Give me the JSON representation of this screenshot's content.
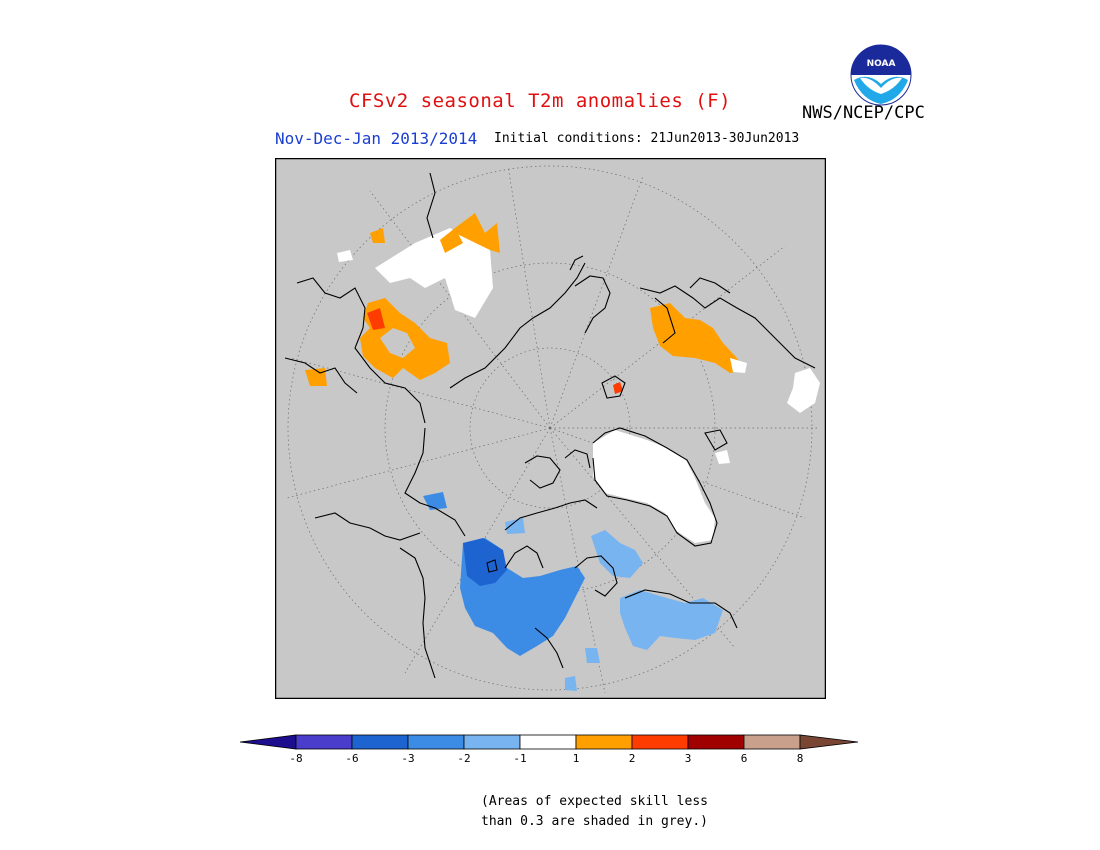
{
  "header": {
    "title": "CFSv2 seasonal T2m anomalies (F)",
    "agency": "NWS/NCEP/CPC",
    "period": "Nov-Dec-Jan 2013/2014",
    "initial_conditions": "Initial conditions: 21Jun2013-30Jun2013",
    "logo_text": "NOAA"
  },
  "colors": {
    "background_grey": "#c8c8c8",
    "coast": "#000000",
    "legend": [
      {
        "range": "< -8",
        "color": "#1c0e8c"
      },
      {
        "range": "-8 to -6",
        "color": "#4a3dcc"
      },
      {
        "range": "-6 to -3",
        "color": "#1e64d0"
      },
      {
        "range": "-3 to -2",
        "color": "#3c8ce6"
      },
      {
        "range": "-2 to -1",
        "color": "#78b4f0"
      },
      {
        "range": "-1 to 1",
        "color": "#ffffff"
      },
      {
        "range": "1 to 2",
        "color": "#ffa000"
      },
      {
        "range": "2 to 3",
        "color": "#ff3c00"
      },
      {
        "range": "3 to 6",
        "color": "#a00000"
      },
      {
        "range": "6 to 8",
        "color": "#c8a08c"
      },
      {
        "range": "> 8",
        "color": "#784632"
      }
    ]
  },
  "colorbar": {
    "labels": [
      "-8",
      "-6",
      "-3",
      "-2",
      "-1",
      "1",
      "2",
      "3",
      "6",
      "8"
    ]
  },
  "note": {
    "line1": "(Areas of expected skill less",
    "line2": "than 0.3 are shaded in grey.)"
  }
}
